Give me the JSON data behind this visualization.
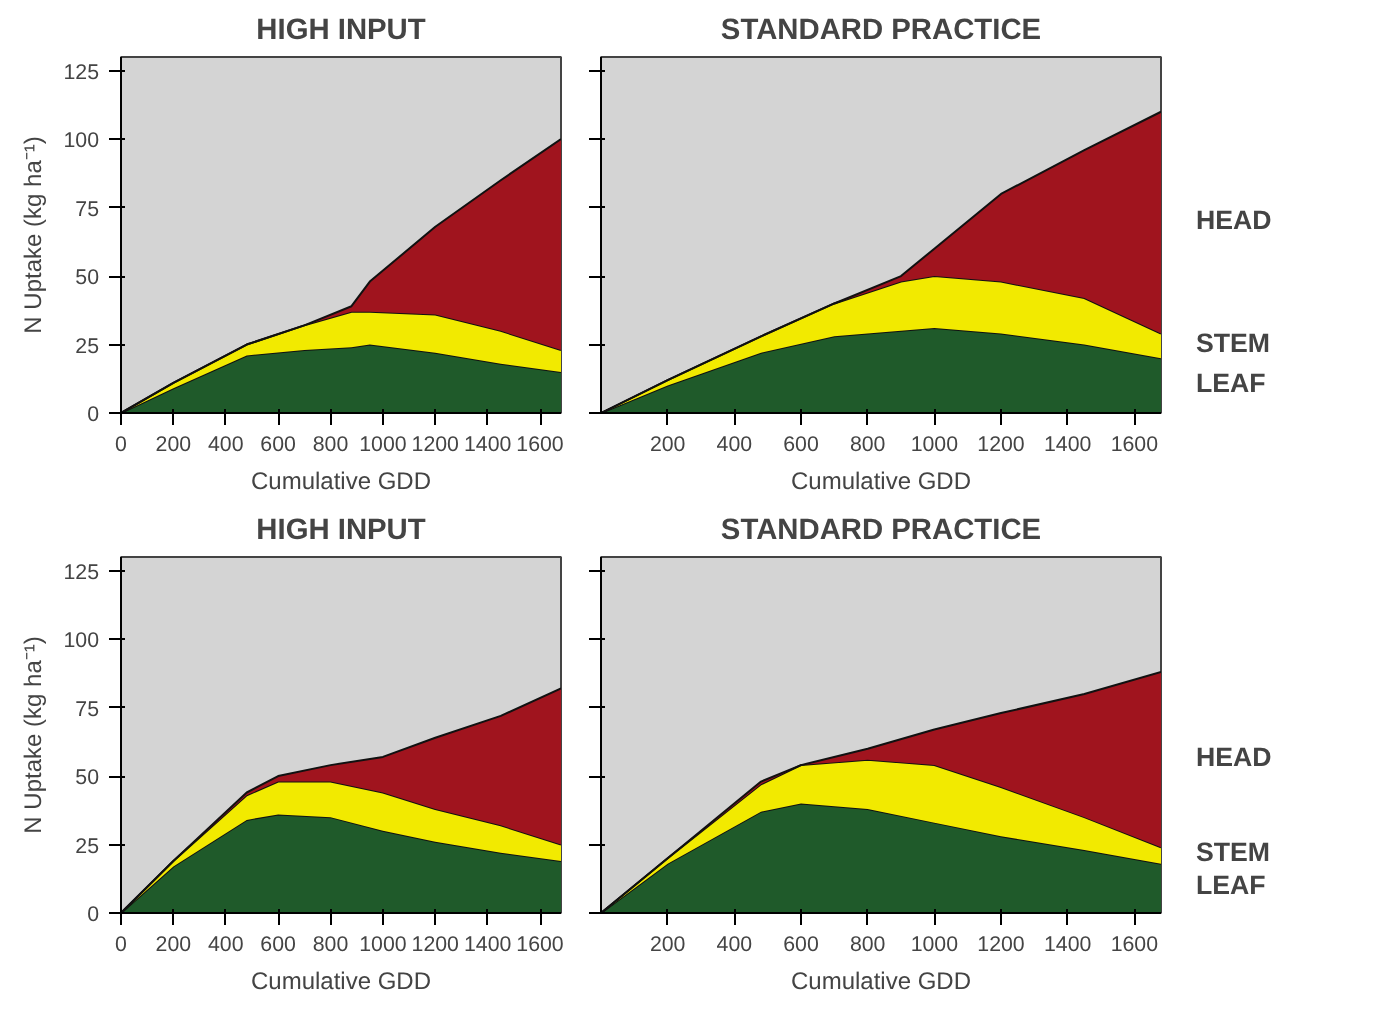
{
  "chart_data": [
    {
      "type": "area",
      "stacked": true,
      "title": "HIGH INPUT",
      "xlabel": "Cumulative GDD",
      "ylabel": "N Uptake (kg ha⁻¹)",
      "xlim": [
        0,
        1680
      ],
      "ylim": [
        0,
        130
      ],
      "xticks": [
        0,
        200,
        400,
        600,
        800,
        1000,
        1200,
        1400,
        1600
      ],
      "yticks": [
        0,
        25,
        50,
        75,
        100,
        125
      ],
      "grid": false,
      "x": [
        0,
        200,
        480,
        700,
        880,
        950,
        1200,
        1450,
        1680
      ],
      "series": [
        {
          "color": "#1f5a2a",
          "values": [
            0,
            9,
            21,
            23,
            24,
            25,
            22,
            18,
            15
          ]
        },
        {
          "color": "#f2ea00",
          "values": [
            0,
            2,
            4,
            9,
            13,
            12,
            14,
            12,
            8
          ]
        },
        {
          "color": "#a0141e",
          "values": [
            0,
            0,
            0,
            0,
            2,
            11,
            32,
            55,
            77
          ]
        }
      ]
    },
    {
      "type": "area",
      "stacked": true,
      "title": "STANDARD PRACTICE",
      "xlabel": "Cumulative GDD",
      "xlim": [
        0,
        1680
      ],
      "ylim": [
        0,
        130
      ],
      "xticks": [
        200,
        400,
        600,
        800,
        1000,
        1200,
        1400,
        1600
      ],
      "yticks": [
        0,
        25,
        50,
        75,
        100,
        125
      ],
      "grid": false,
      "tick_labels": "x",
      "x": [
        0,
        200,
        480,
        700,
        900,
        1000,
        1200,
        1450,
        1680
      ],
      "series": [
        {
          "name": "LEAF",
          "color": "#1f5a2a",
          "values": [
            0,
            10,
            22,
            28,
            30,
            31,
            29,
            25,
            20
          ]
        },
        {
          "name": "STEM",
          "color": "#f2ea00",
          "values": [
            0,
            2,
            6,
            12,
            18,
            19,
            19,
            17,
            9
          ]
        },
        {
          "name": "HEAD",
          "color": "#a0141e",
          "values": [
            0,
            0,
            0,
            0,
            2,
            10,
            32,
            54,
            81
          ]
        }
      ]
    },
    {
      "type": "area",
      "stacked": true,
      "title": "HIGH INPUT",
      "xlabel": "Cumulative GDD",
      "ylabel": "N Uptake (kg ha⁻¹)",
      "xlim": [
        0,
        1680
      ],
      "ylim": [
        0,
        130
      ],
      "xticks": [
        0,
        200,
        400,
        600,
        800,
        1000,
        1200,
        1400,
        1600
      ],
      "yticks": [
        0,
        25,
        50,
        75,
        100,
        125
      ],
      "grid": false,
      "x": [
        0,
        200,
        480,
        600,
        800,
        1000,
        1200,
        1450,
        1680
      ],
      "series": [
        {
          "color": "#1f5a2a",
          "values": [
            0,
            17,
            34,
            36,
            35,
            30,
            26,
            22,
            19
          ]
        },
        {
          "color": "#f2ea00",
          "values": [
            0,
            2,
            9,
            12,
            13,
            14,
            12,
            10,
            6
          ]
        },
        {
          "color": "#a0141e",
          "values": [
            0,
            0,
            1,
            2,
            6,
            13,
            26,
            40,
            57
          ]
        }
      ]
    },
    {
      "type": "area",
      "stacked": true,
      "title": "STANDARD PRACTICE",
      "xlabel": "Cumulative GDD",
      "xlim": [
        0,
        1680
      ],
      "ylim": [
        0,
        130
      ],
      "xticks": [
        200,
        400,
        600,
        800,
        1000,
        1200,
        1400,
        1600
      ],
      "yticks": [
        0,
        25,
        50,
        75,
        100,
        125
      ],
      "grid": false,
      "tick_labels": "x",
      "x": [
        0,
        200,
        480,
        600,
        800,
        1000,
        1200,
        1450,
        1680
      ],
      "series": [
        {
          "name": "LEAF",
          "color": "#1f5a2a",
          "values": [
            0,
            18,
            37,
            40,
            38,
            33,
            28,
            23,
            18
          ]
        },
        {
          "name": "STEM",
          "color": "#f2ea00",
          "values": [
            0,
            2,
            10,
            14,
            18,
            21,
            18,
            12,
            6
          ]
        },
        {
          "name": "HEAD",
          "color": "#a0141e",
          "values": [
            0,
            0,
            1,
            0,
            4,
            13,
            27,
            45,
            64
          ]
        }
      ]
    }
  ]
}
